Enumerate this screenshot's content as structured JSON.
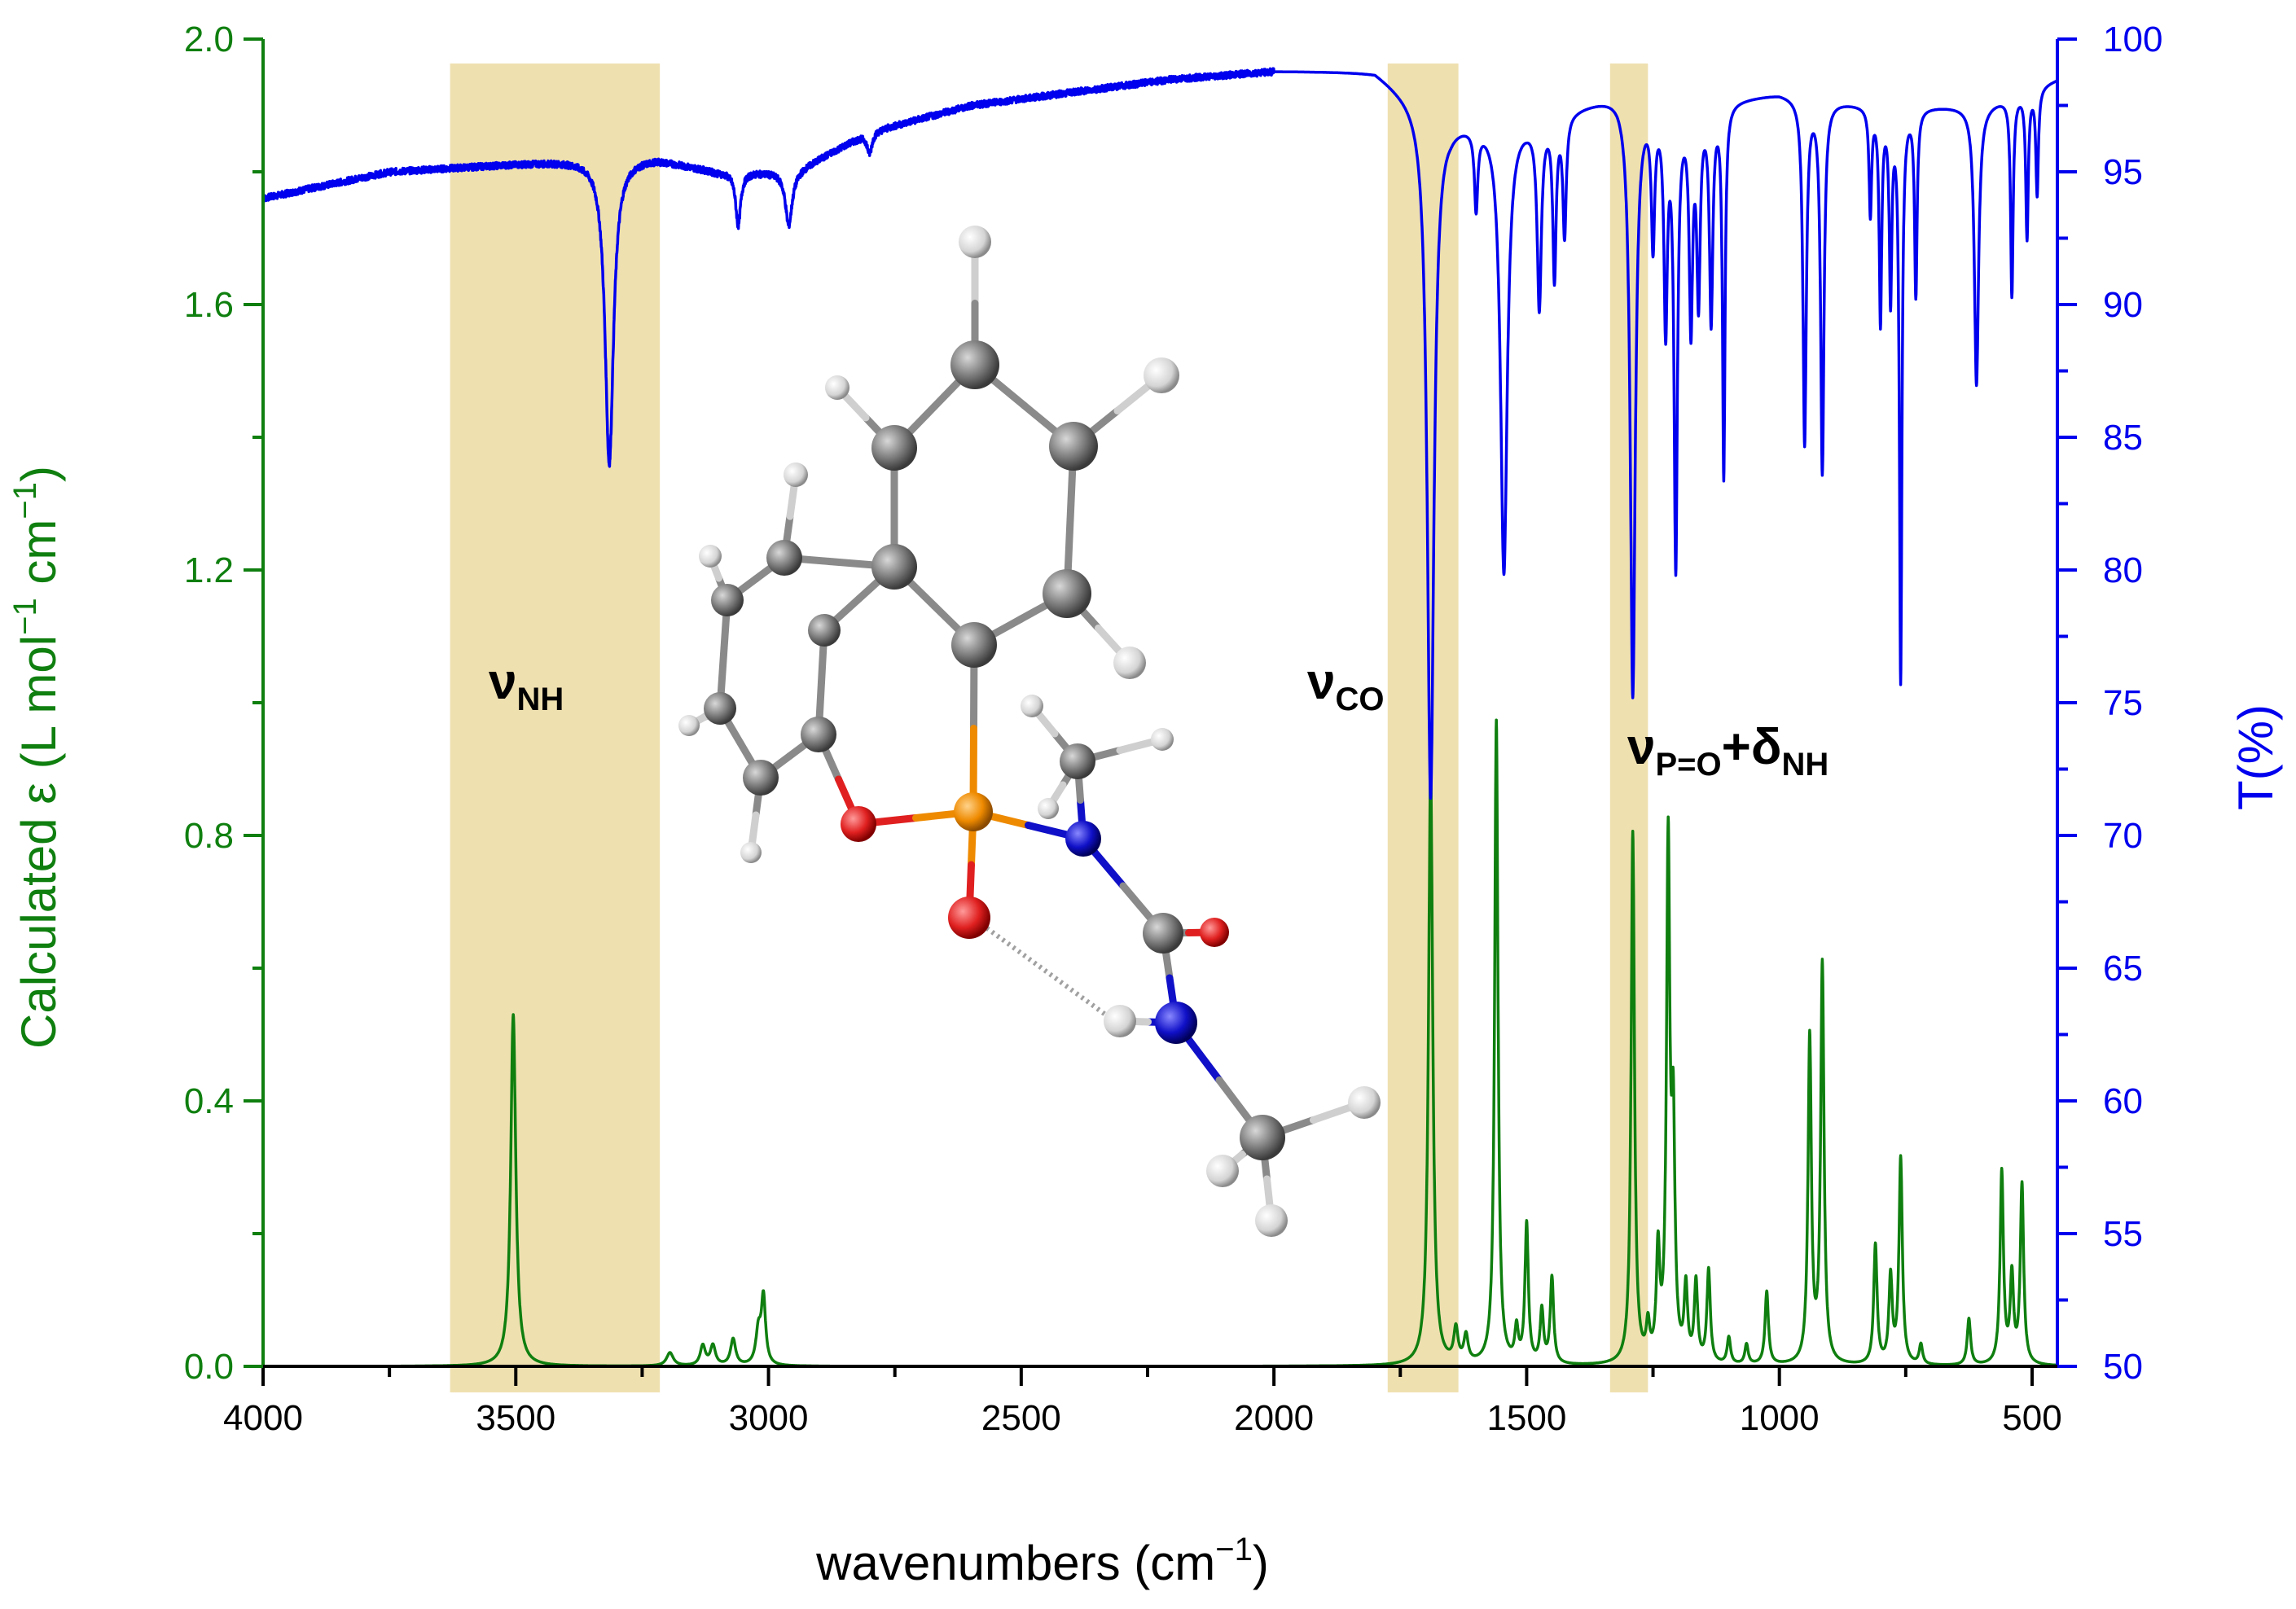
{
  "chart_data": {
    "type": "line",
    "x_axis": {
      "label_main": "wavenumbers (cm",
      "label_sup": "−1",
      "label_end": ")",
      "range": [
        4000,
        450
      ],
      "reversed": true,
      "ticks": [
        4000,
        3500,
        3000,
        2500,
        2000,
        1500,
        1000,
        500
      ],
      "tick_labels": [
        "4000",
        "3500",
        "3000",
        "2500",
        "2000",
        "1500",
        "1000",
        "500"
      ]
    },
    "y_left": {
      "label_prefix": "Calculated ε (L mol",
      "label_sup1": "−1",
      "label_mid": " cm",
      "label_sup2": "−1",
      "label_end": ")",
      "range": [
        0,
        2.0
      ],
      "ticks": [
        0.0,
        0.4,
        0.8,
        1.2,
        1.6,
        2.0
      ],
      "tick_labels": [
        "0.0",
        "0.4",
        "0.8",
        "1.2",
        "1.6",
        "2.0"
      ],
      "color": "#0f7f0f"
    },
    "y_right": {
      "label": "T(%)",
      "range": [
        50,
        100
      ],
      "ticks": [
        50,
        55,
        60,
        65,
        70,
        75,
        80,
        85,
        90,
        95,
        100
      ],
      "tick_labels": [
        "50",
        "55",
        "60",
        "65",
        "70",
        "75",
        "80",
        "85",
        "90",
        "95",
        "100"
      ],
      "color": "#0000ee"
    },
    "bands": [
      {
        "x_range": [
          3630,
          3215
        ],
        "label": "ν",
        "sub": "NH",
        "extra": "",
        "extra_sub": ""
      },
      {
        "x_range": [
          1775,
          1635
        ],
        "label": "ν",
        "sub": "CO",
        "extra": "",
        "extra_sub": ""
      },
      {
        "x_range": [
          1335,
          1260
        ],
        "label": "ν",
        "sub": "P=O",
        "extra": "+δ",
        "extra_sub": "NH"
      }
    ],
    "band_color": "#efe0b0",
    "series": [
      {
        "axis": "left",
        "color": "#0f7f0f",
        "kind": "lorentzian",
        "baseline": 0,
        "peaks": [
          {
            "x": 3505,
            "h": 0.53,
            "w": 6
          },
          {
            "x": 3195,
            "h": 0.02,
            "w": 8
          },
          {
            "x": 3130,
            "h": 0.03,
            "w": 6
          },
          {
            "x": 3110,
            "h": 0.03,
            "w": 6
          },
          {
            "x": 3070,
            "h": 0.04,
            "w": 6
          },
          {
            "x": 3020,
            "h": 0.05,
            "w": 6
          },
          {
            "x": 3010,
            "h": 0.1,
            "w": 5
          },
          {
            "x": 1690,
            "h": 0.9,
            "w": 5
          },
          {
            "x": 1640,
            "h": 0.05,
            "w": 5
          },
          {
            "x": 1620,
            "h": 0.04,
            "w": 5
          },
          {
            "x": 1560,
            "h": 0.97,
            "w": 4
          },
          {
            "x": 1520,
            "h": 0.05,
            "w": 4
          },
          {
            "x": 1500,
            "h": 0.21,
            "w": 4
          },
          {
            "x": 1470,
            "h": 0.08,
            "w": 4
          },
          {
            "x": 1450,
            "h": 0.13,
            "w": 4
          },
          {
            "x": 1290,
            "h": 0.8,
            "w": 4
          },
          {
            "x": 1260,
            "h": 0.05,
            "w": 4
          },
          {
            "x": 1240,
            "h": 0.16,
            "w": 4
          },
          {
            "x": 1220,
            "h": 0.77,
            "w": 4
          },
          {
            "x": 1210,
            "h": 0.33,
            "w": 4
          },
          {
            "x": 1185,
            "h": 0.11,
            "w": 4
          },
          {
            "x": 1165,
            "h": 0.12,
            "w": 4
          },
          {
            "x": 1140,
            "h": 0.14,
            "w": 4
          },
          {
            "x": 1100,
            "h": 0.04,
            "w": 4
          },
          {
            "x": 1065,
            "h": 0.03,
            "w": 4
          },
          {
            "x": 1025,
            "h": 0.11,
            "w": 4
          },
          {
            "x": 940,
            "h": 0.49,
            "w": 4
          },
          {
            "x": 915,
            "h": 0.6,
            "w": 4
          },
          {
            "x": 810,
            "h": 0.18,
            "w": 4
          },
          {
            "x": 780,
            "h": 0.13,
            "w": 4
          },
          {
            "x": 760,
            "h": 0.31,
            "w": 4
          },
          {
            "x": 720,
            "h": 0.03,
            "w": 4
          },
          {
            "x": 625,
            "h": 0.07,
            "w": 4
          },
          {
            "x": 560,
            "h": 0.29,
            "w": 4
          },
          {
            "x": 540,
            "h": 0.13,
            "w": 4
          },
          {
            "x": 520,
            "h": 0.27,
            "w": 4
          }
        ]
      },
      {
        "axis": "right",
        "color": "#0000ee",
        "kind": "transmittance",
        "baseline_points": [
          [
            4000,
            94.0
          ],
          [
            3750,
            95.0
          ],
          [
            3500,
            95.3
          ],
          [
            3330,
            95.5
          ],
          [
            3220,
            95.5
          ],
          [
            3100,
            95.0
          ],
          [
            2950,
            95.0
          ],
          [
            2800,
            96.5
          ],
          [
            2600,
            97.5
          ],
          [
            2400,
            98.0
          ],
          [
            2200,
            98.5
          ],
          [
            2000,
            98.8
          ],
          [
            1800,
            98.8
          ],
          [
            1760,
            98.3
          ],
          [
            1650,
            97.0
          ],
          [
            1500,
            97.0
          ],
          [
            1400,
            97.5
          ],
          [
            1320,
            98.0
          ],
          [
            1200,
            97.5
          ],
          [
            1000,
            98.0
          ],
          [
            800,
            97.5
          ],
          [
            600,
            97.5
          ],
          [
            450,
            98.5
          ]
        ],
        "dips": [
          {
            "x": 3315,
            "d": 11.5,
            "w": 10
          },
          {
            "x": 3060,
            "d": 2.0,
            "w": 6
          },
          {
            "x": 2960,
            "d": 2.0,
            "w": 8
          },
          {
            "x": 2800,
            "d": 0.8,
            "w": 6
          },
          {
            "x": 1690,
            "d": 26.0,
            "w": 8
          },
          {
            "x": 1600,
            "d": 3.0,
            "w": 4
          },
          {
            "x": 1545,
            "d": 17.0,
            "w": 8
          },
          {
            "x": 1475,
            "d": 7.0,
            "w": 5
          },
          {
            "x": 1445,
            "d": 6.0,
            "w": 4
          },
          {
            "x": 1425,
            "d": 4.5,
            "w": 4
          },
          {
            "x": 1290,
            "d": 22.5,
            "w": 6
          },
          {
            "x": 1250,
            "d": 5.0,
            "w": 4
          },
          {
            "x": 1225,
            "d": 8.0,
            "w": 4
          },
          {
            "x": 1205,
            "d": 17.0,
            "w": 4
          },
          {
            "x": 1175,
            "d": 8.0,
            "w": 4
          },
          {
            "x": 1160,
            "d": 7.0,
            "w": 4
          },
          {
            "x": 1135,
            "d": 8.0,
            "w": 4
          },
          {
            "x": 1110,
            "d": 14.0,
            "w": 3
          },
          {
            "x": 950,
            "d": 13.0,
            "w": 4
          },
          {
            "x": 915,
            "d": 14.0,
            "w": 4
          },
          {
            "x": 820,
            "d": 4.0,
            "w": 3
          },
          {
            "x": 800,
            "d": 8.0,
            "w": 3
          },
          {
            "x": 780,
            "d": 7.0,
            "w": 3
          },
          {
            "x": 760,
            "d": 21.5,
            "w": 3
          },
          {
            "x": 730,
            "d": 7.0,
            "w": 3
          },
          {
            "x": 610,
            "d": 10.5,
            "w": 5
          },
          {
            "x": 540,
            "d": 7.5,
            "w": 3
          },
          {
            "x": 510,
            "d": 5.5,
            "w": 3
          },
          {
            "x": 490,
            "d": 4.0,
            "w": 3
          }
        ]
      }
    ]
  },
  "molecule": {
    "colors": {
      "carbon": "#7a7a7a",
      "hydrogen": "#e6e6e6",
      "oxygen": "#e02020",
      "nitrogen": "#1010c8",
      "phosphorus": "#ee8a00"
    }
  }
}
